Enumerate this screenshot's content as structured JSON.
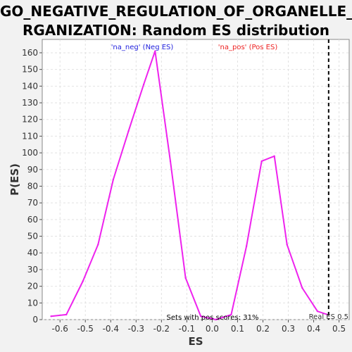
{
  "title_line1": "GO_NEGATIVE_REGULATION_OF_ORGANELLE_O",
  "title_line2": "RGANIZATION: Random ES distribution",
  "chart_data": {
    "type": "line",
    "title": "GO_NEGATIVE_REGULATION_OF_ORGANELLE_ORGANIZATION: Random ES distribution",
    "xlabel": "ES",
    "ylabel": "P(ES)",
    "xlim": [
      -0.67,
      0.54
    ],
    "ylim": [
      0,
      168
    ],
    "xticks": [
      "-0.6",
      "-0.5",
      "-0.4",
      "-0.3",
      "-0.2",
      "-0.1",
      "0.0",
      "0.1",
      "0.2",
      "0.3",
      "0.4",
      "0.5"
    ],
    "xtick_values": [
      -0.6,
      -0.5,
      -0.4,
      -0.3,
      -0.2,
      -0.1,
      0.0,
      0.1,
      0.2,
      0.3,
      0.4,
      0.5
    ],
    "yticks": [
      0,
      10,
      20,
      30,
      40,
      50,
      60,
      70,
      80,
      90,
      100,
      110,
      120,
      130,
      140,
      150,
      160
    ],
    "grid": true,
    "series": [
      {
        "color": "#ee22ee",
        "x": [
          -0.635,
          -0.575,
          -0.51,
          -0.45,
          -0.39,
          -0.33,
          -0.27,
          -0.225,
          -0.165,
          -0.105,
          -0.045,
          0.015,
          0.075,
          0.135,
          0.195,
          0.245,
          0.295,
          0.355,
          0.415,
          0.455
        ],
        "y": [
          2,
          3,
          23,
          45,
          84,
          113,
          141,
          161,
          95,
          25,
          2,
          0,
          3,
          44,
          95,
          98,
          45,
          19,
          5,
          3
        ]
      }
    ],
    "legend": [
      {
        "label": "'na_neg' (Neg ES)",
        "color": "#2222dd"
      },
      {
        "label": "'na_pos' (Pos ES)",
        "color": "#ee2222"
      }
    ],
    "real_es": {
      "x": 0.459,
      "label": "Real ES 0.5"
    },
    "annotation": "Sets with pos scores: 31%"
  }
}
